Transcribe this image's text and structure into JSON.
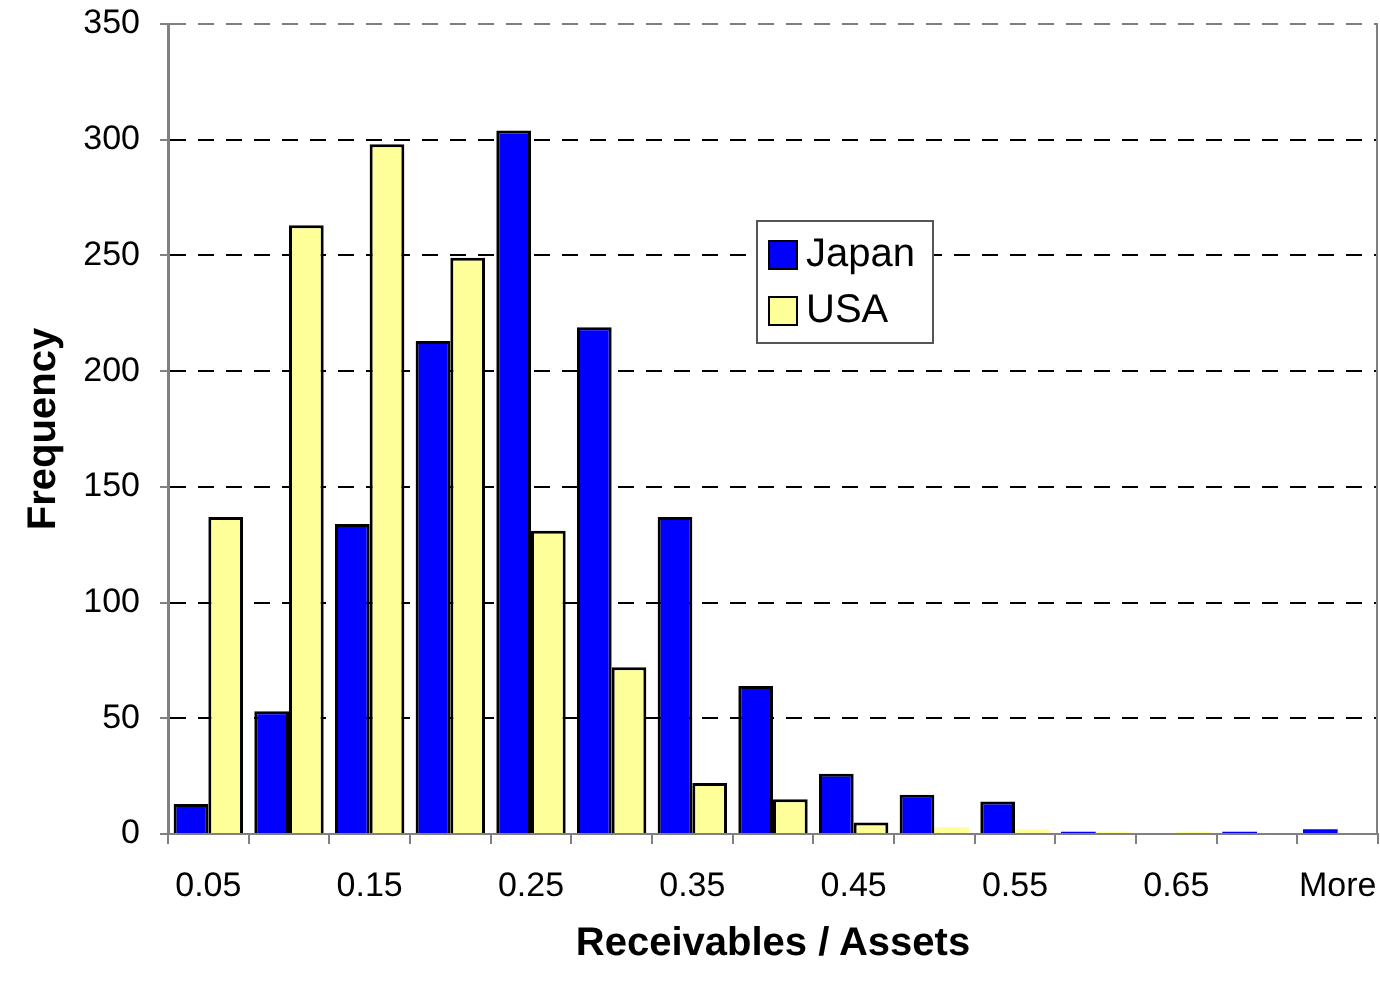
{
  "chart_data": {
    "type": "bar",
    "xlabel": "Receivables / Assets",
    "ylabel": "Frequency",
    "categories": [
      "0.05",
      null,
      "0.15",
      null,
      "0.25",
      null,
      "0.35",
      null,
      "0.45",
      null,
      "0.55",
      null,
      "0.65",
      null,
      "More"
    ],
    "series": [
      {
        "name": "Japan",
        "color": "#0000ff",
        "values": [
          13,
          53,
          134,
          213,
          304,
          219,
          137,
          64,
          26,
          17,
          14,
          1,
          0,
          1,
          2
        ]
      },
      {
        "name": "USA",
        "color": "#ffff99",
        "values": [
          137,
          263,
          298,
          249,
          131,
          72,
          22,
          15,
          5,
          3,
          2,
          1,
          1,
          0,
          0
        ]
      }
    ],
    "ylim": [
      0,
      350
    ],
    "yticks": [
      0,
      50,
      100,
      150,
      200,
      250,
      300,
      350
    ],
    "grid": "y",
    "legend": "top"
  }
}
